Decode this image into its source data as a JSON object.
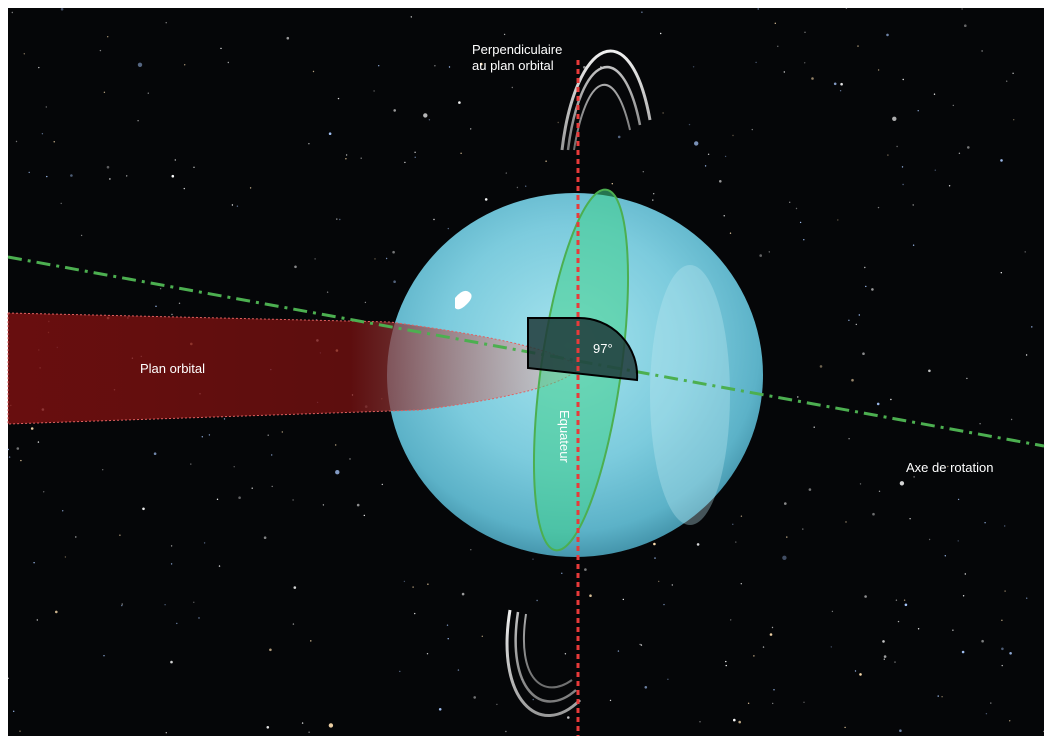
{
  "diagram": {
    "labels": {
      "perpendicular_line1": "Perpendiculaire",
      "perpendicular_line2": "au plan orbital",
      "orbital_plane": "Plan orbital",
      "rotation_axis": "Axe de rotation",
      "equator": "Equateur",
      "tilt_angle": "97°"
    },
    "colors": {
      "space": "#050608",
      "planet_core": "#8fd8e8",
      "planet_edge": "#3fa0b8",
      "orbital_plane_fill": "#7a1010",
      "perpendicular_line": "#e83a3a",
      "rotation_axis": "#4caf50",
      "equator_fill": "#3fcf8a",
      "equator_stroke": "#4caf50",
      "angle_marker": "#1f3a3a",
      "rings": "#d9d9d9"
    }
  }
}
